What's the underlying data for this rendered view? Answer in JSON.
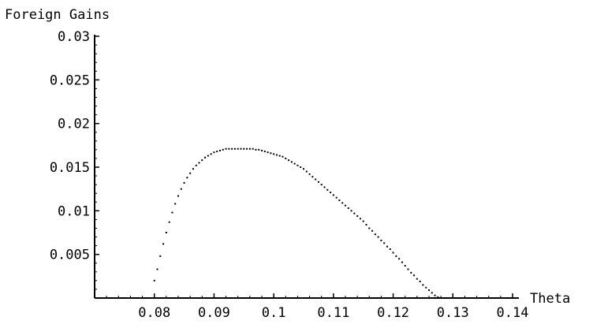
{
  "chart_data": {
    "type": "scatter",
    "title": "",
    "xlabel": "Theta",
    "ylabel": "Foreign Gains",
    "xlim": [
      0.07,
      0.14
    ],
    "ylim": [
      0,
      0.03
    ],
    "x_ticks": [
      "0.08",
      "0.09",
      "0.1",
      "0.11",
      "0.12",
      "0.13",
      "0.14"
    ],
    "y_ticks": [
      "0.005",
      "0.01",
      "0.015",
      "0.02",
      "0.025",
      "0.03"
    ],
    "grid": false,
    "legend": "none",
    "marker_color": "#000000",
    "axis_color": "#000000",
    "series": [
      {
        "x": [
          0.08,
          0.0805,
          0.081,
          0.0815,
          0.082,
          0.0825,
          0.083,
          0.0835,
          0.084,
          0.0845,
          0.085,
          0.0855,
          0.086,
          0.0865,
          0.087,
          0.0875,
          0.088,
          0.0885,
          0.089,
          0.0895,
          0.09,
          0.0905,
          0.091,
          0.0915,
          0.092,
          0.0925,
          0.093,
          0.0935,
          0.094,
          0.0945,
          0.095,
          0.0955,
          0.096,
          0.0965,
          0.097,
          0.0975,
          0.098,
          0.0985,
          0.099,
          0.0995,
          0.1,
          0.1005,
          0.101,
          0.1015,
          0.102,
          0.1025,
          0.103,
          0.1035,
          0.104,
          0.1045,
          0.105,
          0.1055,
          0.106,
          0.1065,
          0.107,
          0.1075,
          0.108,
          0.1085,
          0.109,
          0.1095,
          0.11,
          0.1105,
          0.111,
          0.1115,
          0.112,
          0.1125,
          0.113,
          0.1135,
          0.114,
          0.1145,
          0.115,
          0.1155,
          0.116,
          0.1165,
          0.117,
          0.1175,
          0.118,
          0.1185,
          0.119,
          0.1195,
          0.12,
          0.1205,
          0.121,
          0.1215,
          0.122,
          0.1225,
          0.123,
          0.1235,
          0.124,
          0.1245,
          0.125,
          0.1255,
          0.126,
          0.1265,
          0.127,
          0.1275,
          0.128,
          0.1285,
          0.129
        ],
        "y": [
          0.002,
          0.0033,
          0.0048,
          0.0062,
          0.0075,
          0.0087,
          0.0098,
          0.0108,
          0.0117,
          0.0125,
          0.0132,
          0.0138,
          0.0143,
          0.0148,
          0.0152,
          0.0155,
          0.0158,
          0.0161,
          0.0163,
          0.0165,
          0.0167,
          0.0168,
          0.0169,
          0.017,
          0.0171,
          0.0171,
          0.0171,
          0.0171,
          0.0171,
          0.0171,
          0.0171,
          0.0171,
          0.0171,
          0.0171,
          0.017,
          0.017,
          0.0169,
          0.0168,
          0.0167,
          0.0166,
          0.0165,
          0.0164,
          0.0163,
          0.0162,
          0.016,
          0.0158,
          0.0156,
          0.0154,
          0.0152,
          0.015,
          0.0148,
          0.0145,
          0.0142,
          0.0139,
          0.0136,
          0.0133,
          0.013,
          0.0127,
          0.0124,
          0.0121,
          0.0118,
          0.0115,
          0.0112,
          0.0109,
          0.0106,
          0.0103,
          0.01,
          0.0097,
          0.0094,
          0.0091,
          0.0088,
          0.0084,
          0.008,
          0.0077,
          0.0073,
          0.007,
          0.0066,
          0.0063,
          0.0059,
          0.0056,
          0.0052,
          0.0048,
          0.0045,
          0.0041,
          0.0037,
          0.0033,
          0.0029,
          0.0026,
          0.0022,
          0.0019,
          0.0015,
          0.0012,
          0.0009,
          0.0006,
          0.0003,
          0.0001,
          0.0,
          0.0,
          0.0
        ]
      }
    ]
  }
}
